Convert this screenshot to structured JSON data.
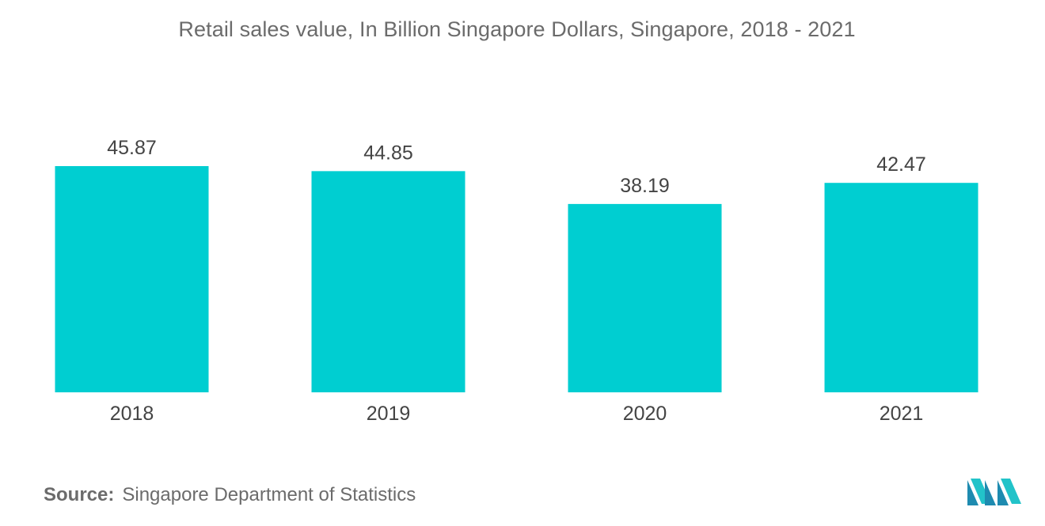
{
  "chart_data": {
    "type": "bar",
    "title": "Retail sales value, In Billion Singapore Dollars, Singapore, 2018 - 2021",
    "categories": [
      "2018",
      "2019",
      "2020",
      "2021"
    ],
    "values": [
      45.87,
      44.85,
      38.19,
      42.47
    ],
    "value_labels": [
      "45.87",
      "44.85",
      "38.19",
      "42.47"
    ],
    "xlabel": "",
    "ylabel": "",
    "ylim": [
      0,
      45.87
    ],
    "grid": false,
    "legend": "none",
    "bar_color": "#00CED1"
  },
  "source": {
    "label": "Source:",
    "text": "Singapore Department of Statistics"
  },
  "logo": {
    "icon": "mordor-intelligence-logo",
    "colors": [
      "#1e8bb0",
      "#22c3c9"
    ]
  }
}
